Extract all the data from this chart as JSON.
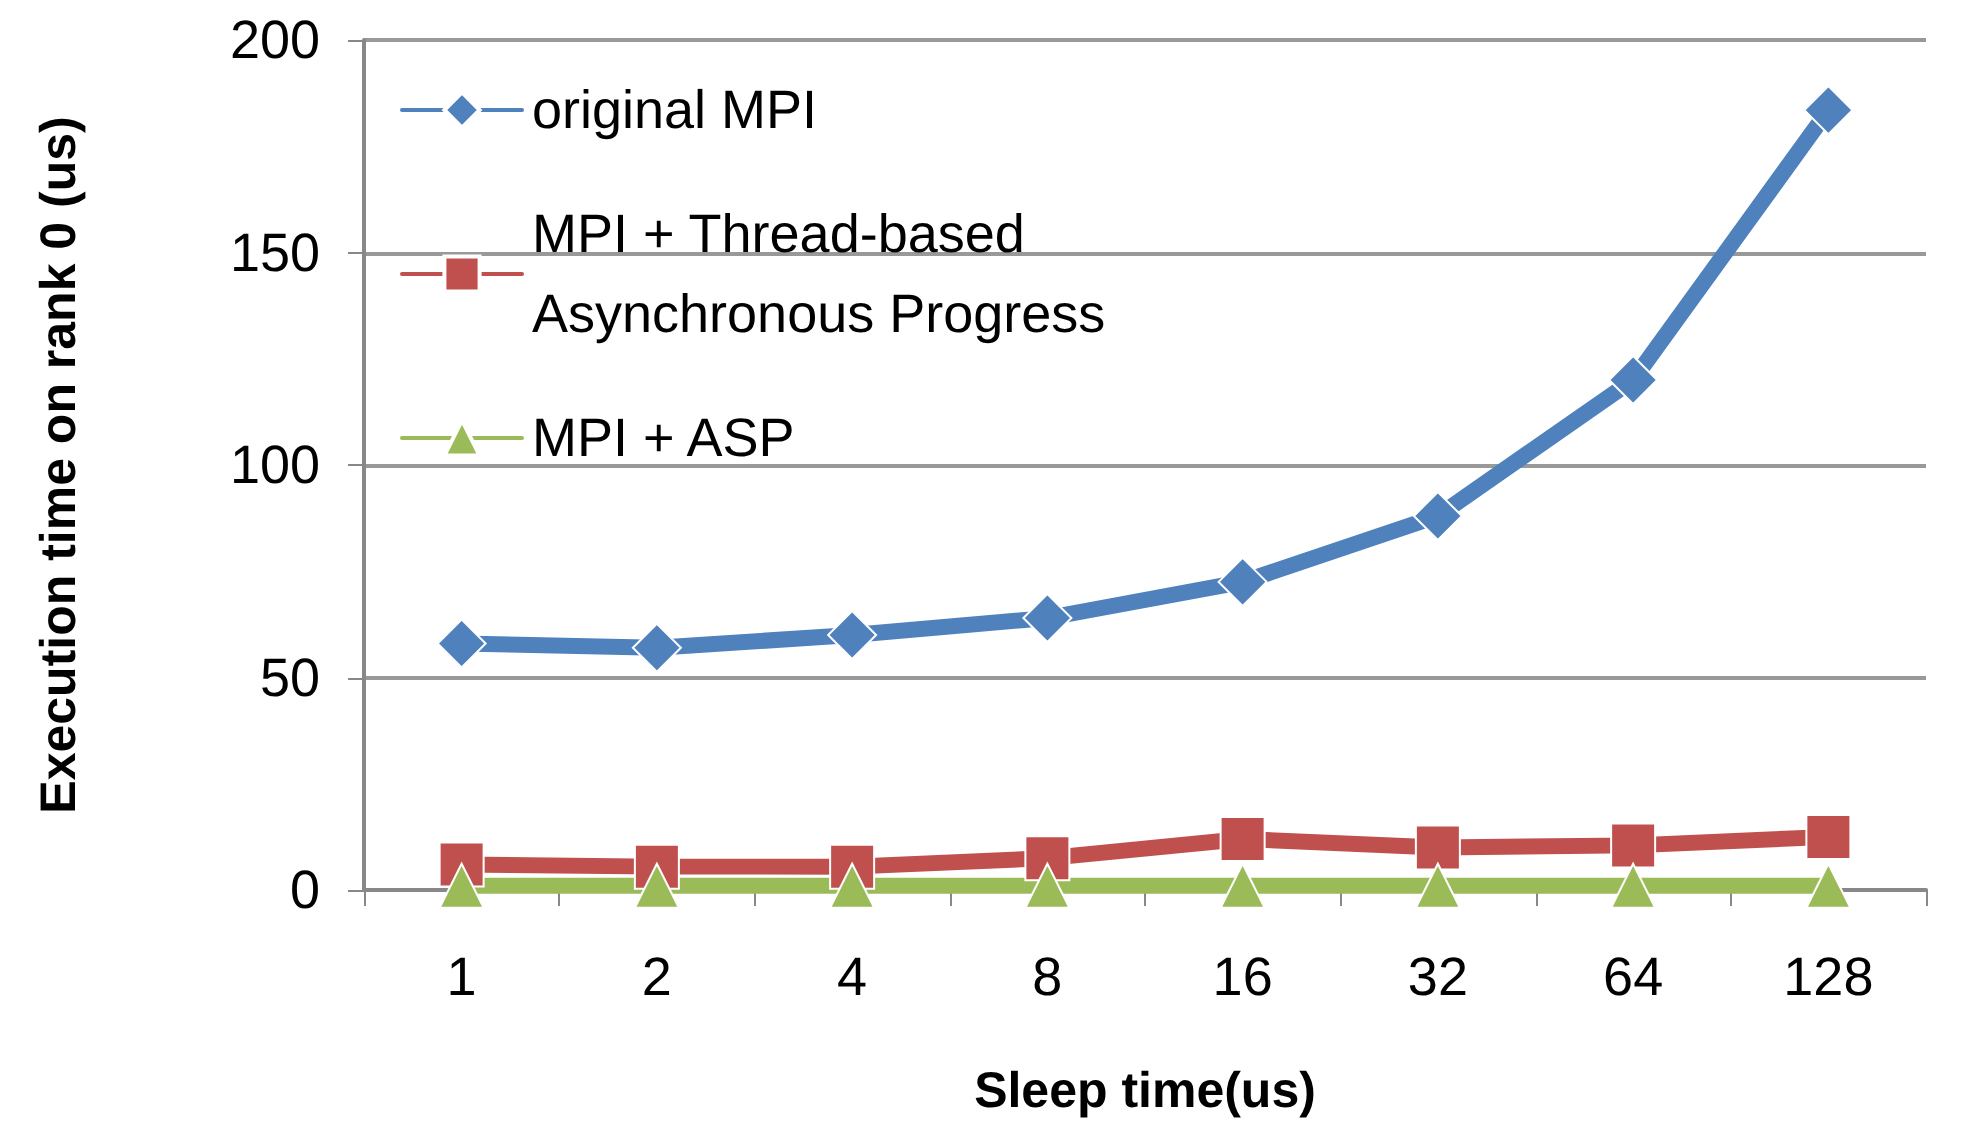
{
  "chart_data": {
    "type": "line",
    "xlabel": "Sleep time(us)",
    "ylabel": "Execution time on rank 0 (us)",
    "categories": [
      "1",
      "2",
      "4",
      "8",
      "16",
      "32",
      "64",
      "128"
    ],
    "series": [
      {
        "name": "original MPI",
        "color": "#4f81bd",
        "marker": "diamond",
        "values": [
          58,
          57,
          60,
          64,
          72.5,
          88,
          120,
          183.5
        ]
      },
      {
        "name": "MPI + Thread-based\nAsynchronous Progress",
        "color": "#c0504d",
        "marker": "square",
        "values": [
          6,
          5.5,
          5.5,
          7.5,
          12,
          10,
          10.5,
          12.5
        ]
      },
      {
        "name": "MPI + ASP",
        "color": "#9bbb59",
        "marker": "triangle",
        "values": [
          1,
          1,
          1,
          1,
          1,
          1,
          1,
          1
        ]
      }
    ],
    "ylim": [
      0,
      200
    ],
    "yticks": [
      0,
      50,
      100,
      150,
      200
    ],
    "grid": "y",
    "legend": "top left",
    "line_style": "solid"
  }
}
